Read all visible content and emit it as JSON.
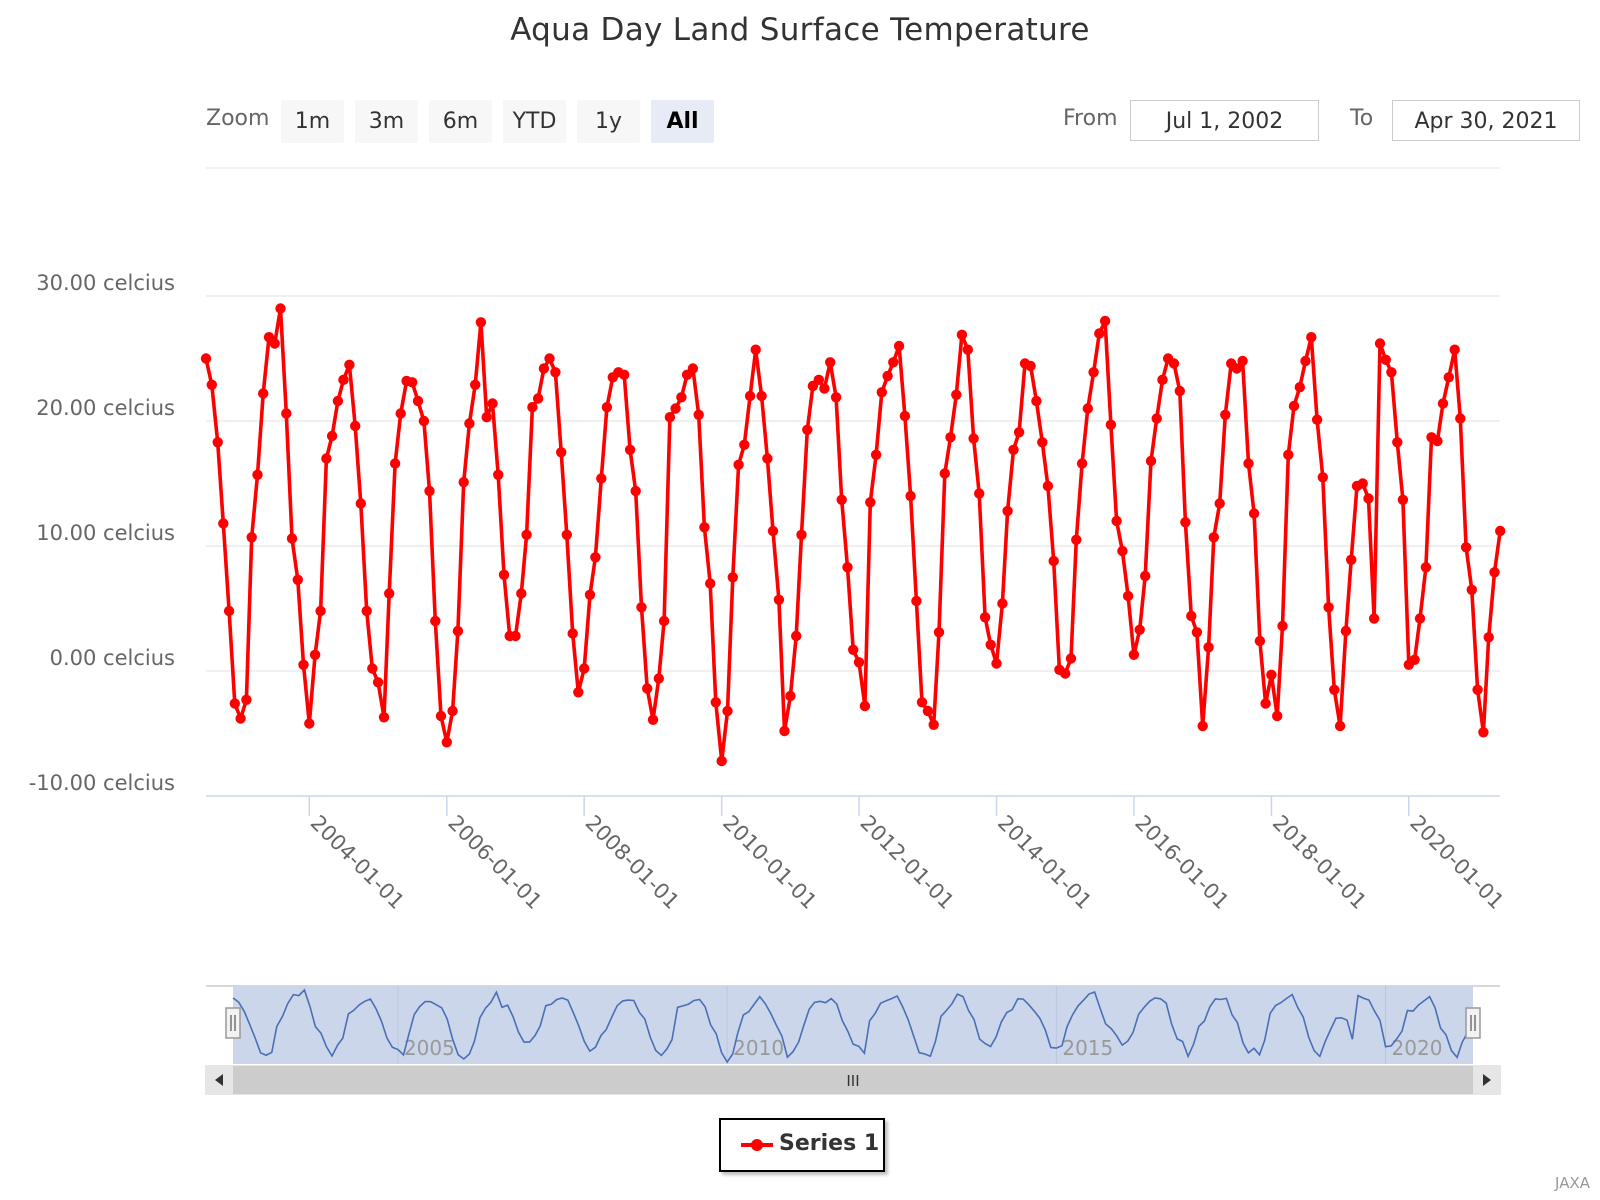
{
  "title": "Aqua Day Land Surface Temperature",
  "range_selector": {
    "zoom_label": "Zoom",
    "buttons": [
      "1m",
      "3m",
      "6m",
      "YTD",
      "1y",
      "All"
    ],
    "active_button": "All",
    "from_label": "From",
    "to_label": "To",
    "from_value": "Jul 1, 2002",
    "to_value": "Apr 30, 2021"
  },
  "navigator": {
    "year_labels": [
      "2005",
      "2010",
      "2015",
      "2020"
    ],
    "scroll_grip": "III",
    "line_color": "#4a6fb5",
    "mask_color": "#ccd6eb"
  },
  "legend": {
    "series_name": "Series 1"
  },
  "credits": "JAXA",
  "chart_data": {
    "type": "line",
    "title": "Aqua Day Land Surface Temperature",
    "y_tick_labels": [
      "30.00 celcius",
      "20.00 celcius",
      "10.00 celcius",
      "0.00 celcius",
      "-10.00 celcius"
    ],
    "y_ticks": [
      30,
      20,
      10,
      0,
      -10
    ],
    "ylim": [
      -10,
      30
    ],
    "x_tick_labels": [
      "2004-01-01",
      "2006-01-01",
      "2008-01-01",
      "2010-01-01",
      "2012-01-01",
      "2014-01-01",
      "2016-01-01",
      "2018-01-01",
      "2020-01-01"
    ],
    "x_start": "2002-07-01",
    "x_end": "2021-04-30",
    "grid": true,
    "legend_position": "bottom-center",
    "series": [
      {
        "name": "Series 1",
        "color": "#ff0000",
        "x_start": "2002-07-01",
        "interval": "monthly",
        "values": [
          25.0,
          22.9,
          18.3,
          11.8,
          4.8,
          -2.6,
          -3.8,
          -2.3,
          10.7,
          15.7,
          22.2,
          26.7,
          26.2,
          29.0,
          20.6,
          10.6,
          7.3,
          0.5,
          -4.2,
          1.3,
          4.8,
          17.0,
          18.8,
          21.6,
          23.3,
          24.5,
          19.6,
          13.4,
          4.8,
          0.2,
          -0.9,
          -3.7,
          6.2,
          16.6,
          20.6,
          23.2,
          23.1,
          21.6,
          20.0,
          14.4,
          4.0,
          -3.6,
          -5.7,
          -3.2,
          3.2,
          15.1,
          19.8,
          22.9,
          27.9,
          20.3,
          21.4,
          15.7,
          7.7,
          2.8,
          2.8,
          6.2,
          10.9,
          21.1,
          21.8,
          24.2,
          25.0,
          23.9,
          17.5,
          10.9,
          3.0,
          -1.7,
          0.2,
          6.1,
          9.1,
          15.4,
          21.1,
          23.5,
          23.9,
          23.7,
          17.7,
          14.4,
          5.1,
          -1.4,
          -3.9,
          -0.6,
          4.0,
          20.3,
          21.0,
          21.9,
          23.7,
          24.2,
          20.5,
          11.5,
          7.0,
          -2.5,
          -7.2,
          -3.2,
          7.5,
          16.5,
          18.1,
          22.0,
          25.7,
          22.0,
          17.0,
          11.2,
          5.7,
          -4.8,
          -2.0,
          2.8,
          10.9,
          19.3,
          22.8,
          23.3,
          22.6,
          24.7,
          21.9,
          13.7,
          8.3,
          1.7,
          0.7,
          -2.8,
          13.5,
          17.3,
          22.3,
          23.6,
          24.7,
          26.0,
          20.4,
          14.0,
          5.6,
          -2.5,
          -3.2,
          -4.3,
          3.1,
          15.8,
          18.7,
          22.1,
          26.9,
          25.7,
          18.6,
          14.2,
          4.3,
          2.1,
          0.6,
          5.4,
          12.8,
          17.7,
          19.1,
          24.6,
          24.4,
          21.6,
          18.3,
          14.8,
          8.8,
          0.1,
          -0.2,
          1.0,
          10.5,
          16.6,
          21.0,
          23.9,
          27.0,
          28.0,
          19.7,
          12.0,
          9.6,
          6.0,
          1.3,
          3.3,
          7.6,
          16.8,
          20.2,
          23.3,
          25.0,
          24.6,
          22.4,
          11.9,
          4.4,
          3.1,
          -4.4,
          1.9,
          10.7,
          13.4,
          20.5,
          24.6,
          24.2,
          24.8,
          16.6,
          12.6,
          2.4,
          -2.6,
          -0.3,
          -3.6,
          3.6,
          17.3,
          21.2,
          22.7,
          24.8,
          26.7,
          20.1,
          15.5,
          5.1,
          -1.5,
          -4.4,
          3.2,
          8.9,
          14.8,
          15.0,
          13.8,
          4.2,
          26.2,
          24.9,
          23.9,
          18.3,
          13.7,
          0.5,
          0.9,
          4.2,
          8.3,
          18.7,
          18.4,
          21.4,
          23.5,
          25.7,
          20.2,
          9.9,
          6.5,
          -1.5,
          -4.9,
          2.7,
          7.9,
          11.2
        ]
      }
    ]
  }
}
